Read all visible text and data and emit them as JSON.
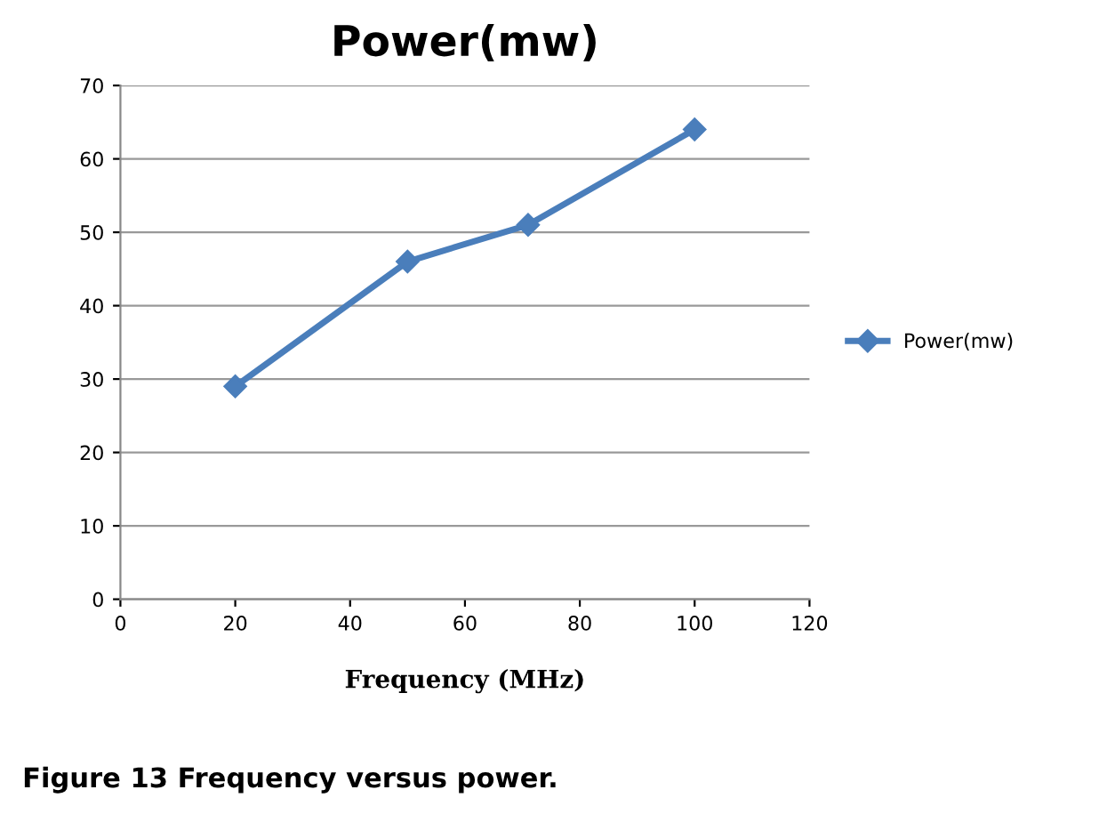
{
  "chart_data": {
    "type": "line",
    "title": "Power(mw)",
    "xlabel": "Frequency (MHz)",
    "x": [
      20,
      50,
      71,
      100
    ],
    "series": [
      {
        "name": "Power(mw)",
        "color": "#4a7ebb",
        "values": [
          29,
          46,
          51,
          64
        ]
      }
    ],
    "xlim": [
      0,
      120
    ],
    "xticks": [
      0,
      20,
      40,
      60,
      80,
      100,
      120
    ],
    "ylim": [
      0,
      70
    ],
    "yticks": [
      0,
      10,
      20,
      30,
      40,
      50,
      60,
      70
    ],
    "grid": "y",
    "legend": "right",
    "marker": "diamond",
    "line_style": "solid",
    "annotations": [
      "Figure 13 Frequency versus power."
    ]
  }
}
